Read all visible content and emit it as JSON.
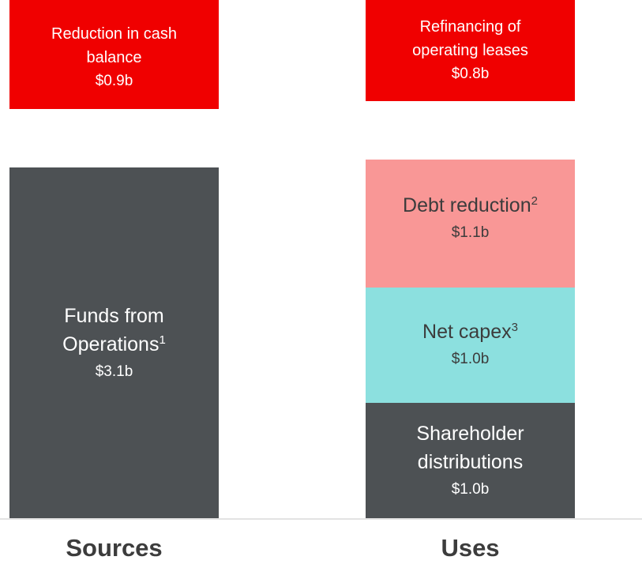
{
  "columns": [
    {
      "label": "Sources",
      "blocks": [
        {
          "lines": [
            "Reduction in cash",
            "balance"
          ],
          "amount": "$0.9b"
        },
        {
          "lines": [
            "Funds from",
            "Operations"
          ],
          "note": "1",
          "amount": "$3.1b"
        }
      ]
    },
    {
      "label": "Uses",
      "blocks": [
        {
          "lines": [
            "Refinancing of",
            "operating leases"
          ],
          "amount": "$0.8b"
        },
        {
          "lines": [
            "Debt reduction"
          ],
          "note": "2",
          "amount": "$1.1b"
        },
        {
          "lines": [
            "Net capex"
          ],
          "note": "3",
          "amount": "$1.0b"
        },
        {
          "lines": [
            "Shareholder",
            "distributions"
          ],
          "amount": "$1.0b"
        }
      ]
    }
  ]
}
